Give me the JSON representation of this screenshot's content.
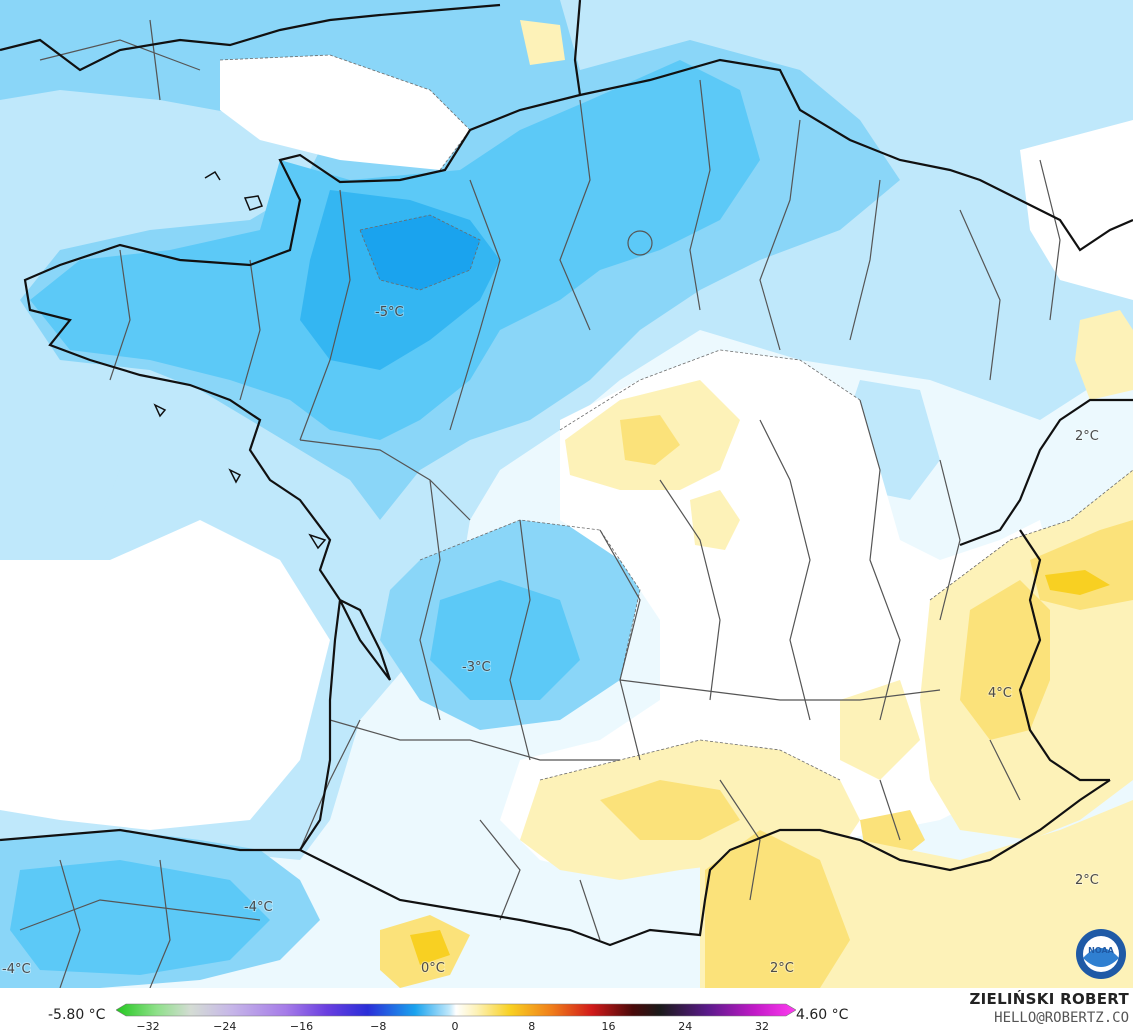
{
  "map": {
    "labels": [
      {
        "text": "-5°C"
      },
      {
        "text": "-3°C"
      },
      {
        "text": "-4°C"
      },
      {
        "text": "-4°C"
      },
      {
        "text": "4°C"
      },
      {
        "text": "2°C"
      },
      {
        "text": "2°C"
      },
      {
        "text": "0°C"
      },
      {
        "text": "2°C"
      }
    ]
  },
  "colorbar": {
    "min_text": "-5.80 °C",
    "max_text": "4.60 °C",
    "ticks": [
      "−32",
      "−24",
      "−16",
      "−8",
      "0",
      "8",
      "16",
      "24",
      "32"
    ]
  },
  "credit": {
    "name": "ZIELIŃSKI ROBERT",
    "email": "HELLO@ROBERTZ.CO"
  },
  "logo": {
    "text": "NOAA"
  },
  "colors": {
    "cold_strong": "#1aa3ee",
    "cold_mid": "#4cc4f6",
    "cold_light": "#9fdcf8",
    "cold_pale": "#e6f7fe",
    "neutral": "#ffffff",
    "warm_light": "#fdf2b8",
    "warm_mid": "#fbe27a",
    "warm_strong": "#f8d022"
  }
}
